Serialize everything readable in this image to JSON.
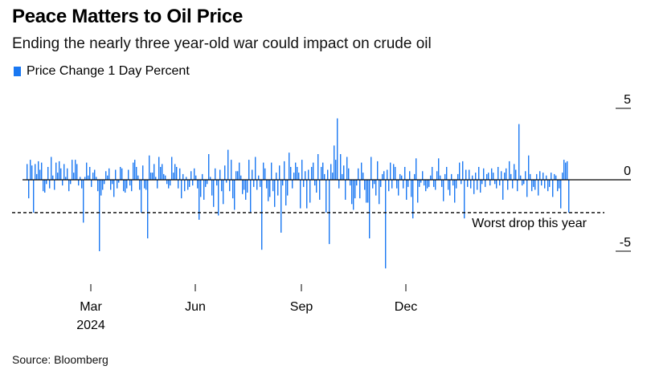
{
  "header": {
    "title": "Peace Matters to Oil Price",
    "subtitle": "Ending the nearly three year-old war could impact on crude oil"
  },
  "footer": {
    "source": "Source: Bloomberg"
  },
  "chart_data": {
    "type": "bar",
    "legend": {
      "label": "Price Change 1 Day Percent",
      "position": "top-left"
    },
    "color": "#1a78f2",
    "ylim": [
      -6.4,
      5
    ],
    "yticks": [
      5,
      0,
      -5
    ],
    "xlabels": [
      "Mar\n2024",
      "Jun",
      "Sep",
      "Dec"
    ],
    "xtick_positions": [
      40,
      105,
      171,
      236
    ],
    "grid": false,
    "reference_line": {
      "value": -2.3,
      "label": "Worst drop this year",
      "style": "dashed"
    },
    "values": [
      1.1,
      -1.3,
      1.4,
      1.0,
      -2.3,
      1.1,
      0.4,
      1.3,
      0.7,
      1.2,
      -0.8,
      -0.9,
      -0.3,
      0.9,
      -0.6,
      1.6,
      0.3,
      -0.7,
      1.2,
      0.5,
      1.3,
      0.8,
      -0.4,
      1.1,
      0.2,
      0.8,
      -0.8,
      -0.3,
      1.4,
      0.5,
      1.4,
      1.1,
      -0.4,
      0.2,
      -0.6,
      -3.0,
      0.2,
      1.2,
      0.3,
      0.9,
      -0.5,
      0.5,
      0.7,
      0.2,
      -0.8,
      -5.0,
      -1.1,
      -0.7,
      -0.3,
      0.6,
      0.3,
      0.8,
      -0.7,
      -0.3,
      -1.2,
      0.7,
      -0.6,
      -0.2,
      0.9,
      0.8,
      -0.8,
      -0.9,
      -0.6,
      0.7,
      -0.4,
      -0.8,
      1.2,
      1.4,
      0.9,
      0.3,
      -0.7,
      -2.3,
      1.0,
      -0.6,
      -0.7,
      -4.1,
      1.7,
      0.5,
      0.5,
      1.1,
      0.2,
      -0.6,
      1.6,
      0.9,
      1.1,
      0.4,
      0.3,
      -0.3,
      -0.6,
      -0.4,
      1.6,
      0.5,
      1.1,
      0.9,
      -0.6,
      0.8,
      -1.3,
      0.4,
      -0.8,
      0.2,
      -0.7,
      -0.5,
      0.6,
      -0.4,
      0.8,
      0.3,
      -0.6,
      -2.8,
      -1.2,
      0.4,
      -1.4,
      -0.5,
      -0.3,
      1.8,
      0.2,
      -1.1,
      -1.9,
      0.8,
      -0.4,
      -2.5,
      0.7,
      -0.8,
      -1.7,
      1.0,
      -0.2,
      2.1,
      -0.8,
      1.4,
      -1.3,
      -2.1,
      0.6,
      0.6,
      1.2,
      0.3,
      -1.0,
      -0.7,
      -1.4,
      -0.9,
      1.4,
      -2.3,
      0.7,
      -0.5,
      1.6,
      -0.7,
      0.3,
      -0.5,
      -4.9,
      1.2,
      0.8,
      -0.6,
      -1.5,
      -1.2,
      1.2,
      -0.8,
      -1.9,
      0.5,
      -1.1,
      1.0,
      -3.7,
      -0.4,
      1.3,
      -1.8,
      -1.1,
      1.9,
      0.9,
      -0.6,
      0.5,
      1.2,
      0.9,
      0.5,
      -2.0,
      1.4,
      -0.5,
      0.6,
      -2.0,
      0.7,
      -1.6,
      0.9,
      1.2,
      -0.4,
      -0.9,
      1.8,
      -1.4,
      0.9,
      1.2,
      0.4,
      -2.3,
      0.7,
      -4.5,
      1.1,
      0.5,
      2.4,
      1.4,
      4.3,
      -0.6,
      1.8,
      0.4,
      1.0,
      -1.4,
      1.6,
      0.8,
      -0.4,
      -1.7,
      -2.1,
      -1.3,
      -0.4,
      0.8,
      -1.3,
      1.2,
      0.5,
      -0.7,
      -1.6,
      -1.6,
      -4.1,
      1.6,
      -0.6,
      -0.3,
      -1.1,
      1.3,
      -1.7,
      -0.5,
      0.4,
      0.6,
      -6.2,
      0.7,
      -0.8,
      1.2,
      -0.6,
      1.1,
      0.9,
      -0.6,
      -1.1,
      0.4,
      0.3,
      -0.6,
      0.9,
      -1.4,
      -0.5,
      0.6,
      -1.2,
      -2.7,
      0.4,
      1.5,
      -1.6,
      -0.5,
      -0.2,
      0.6,
      -0.4,
      -0.8,
      -0.6,
      -0.5,
      0.3,
      0.9,
      -0.5,
      -0.7,
      0.6,
      1.5,
      0.3,
      -0.5,
      -1.5,
      0.4,
      0.9,
      -0.7,
      -1.1,
      0.4,
      -0.4,
      -1.6,
      -0.6,
      0.4,
      1.2,
      -0.3,
      1.3,
      -2.7,
      0.7,
      -0.5,
      0.7,
      -0.6,
      0.3,
      -1.0,
      0.5,
      -0.7,
      0.9,
      -0.9,
      -0.3,
      0.8,
      -0.5,
      0.4,
      0.5,
      -0.4,
      0.8,
      0.5,
      -0.3,
      -0.6,
      0.9,
      -0.4,
      0.6,
      -1.4,
      0.5,
      0.8,
      -0.7,
      1.3,
      0.4,
      -0.6,
      1.1,
      0.7,
      -0.8,
      3.9,
      0.3,
      -0.4,
      -0.3,
      0.6,
      -1.2,
      1.7,
      0.4,
      -0.8,
      -0.5,
      -0.7,
      0.4,
      -1.1,
      0.6,
      -0.4,
      0.5,
      -0.6,
      0.3,
      -0.8,
      -0.5,
      0.5,
      -1.2,
      0.4,
      0.3,
      -0.8,
      -0.6,
      -2.0,
      0.5,
      1.4,
      1.2,
      1.3,
      -2.3
    ]
  }
}
